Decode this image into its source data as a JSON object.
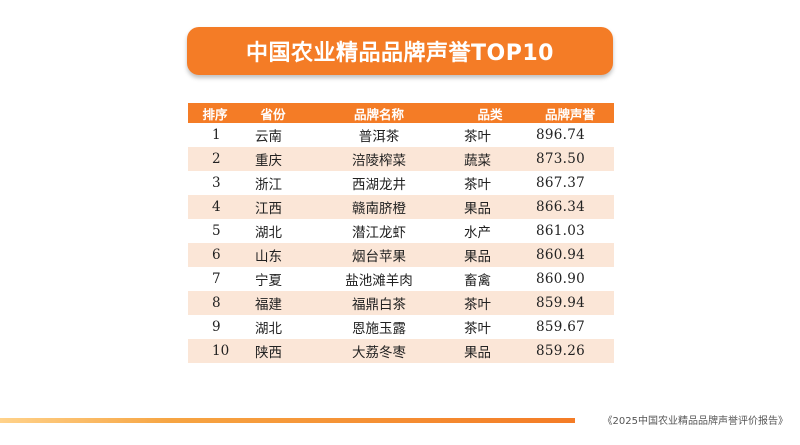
{
  "title": "中国农业精品品牌声誉TOP10",
  "table": {
    "headers": {
      "rank": "排序",
      "province": "省份",
      "brand": "品牌名称",
      "category": "品类",
      "score": "品牌声誉"
    },
    "rows": [
      {
        "rank": "1",
        "province": "云南",
        "brand": "普洱茶",
        "category": "茶叶",
        "score": "896.74"
      },
      {
        "rank": "2",
        "province": "重庆",
        "brand": "涪陵榨菜",
        "category": "蔬菜",
        "score": "873.50"
      },
      {
        "rank": "3",
        "province": "浙江",
        "brand": "西湖龙井",
        "category": "茶叶",
        "score": "867.37"
      },
      {
        "rank": "4",
        "province": "江西",
        "brand": "赣南脐橙",
        "category": "果品",
        "score": "866.34"
      },
      {
        "rank": "5",
        "province": "湖北",
        "brand": "潜江龙虾",
        "category": "水产",
        "score": "861.03"
      },
      {
        "rank": "6",
        "province": "山东",
        "brand": "烟台苹果",
        "category": "果品",
        "score": "860.94"
      },
      {
        "rank": "7",
        "province": "宁夏",
        "brand": "盐池滩羊肉",
        "category": "畜禽",
        "score": "860.90"
      },
      {
        "rank": "8",
        "province": "福建",
        "brand": "福鼎白茶",
        "category": "茶叶",
        "score": "859.94"
      },
      {
        "rank": "9",
        "province": "湖北",
        "brand": "恩施玉露",
        "category": "茶叶",
        "score": "859.67"
      },
      {
        "rank": "10",
        "province": "陕西",
        "brand": "大荔冬枣",
        "category": "果品",
        "score": "859.26"
      }
    ]
  },
  "footer": "《2025中国农业精品品牌声誉评价报告》",
  "colors": {
    "accent": "#f47c26",
    "row_stripe": "#fbe6d7"
  }
}
